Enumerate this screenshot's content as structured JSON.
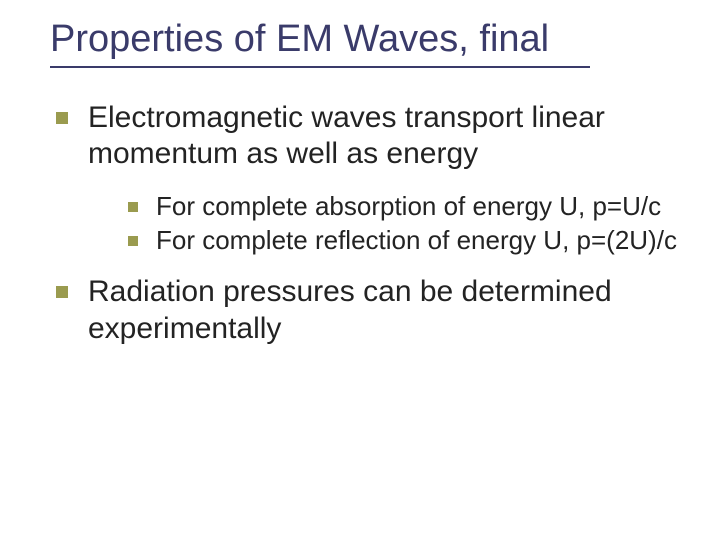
{
  "slide": {
    "title": "Properties of EM Waves, final",
    "title_color": "#3a3b6a",
    "title_fontsize": 38,
    "underline_color": "#3a3b6a",
    "underline_width": 540,
    "bullet_color": "#9a9b4f",
    "body_color": "#232323",
    "lvl1_fontsize": 30,
    "lvl2_fontsize": 26,
    "background_color": "#ffffff",
    "items": [
      {
        "text": "Electromagnetic waves transport linear momentum as well as energy",
        "children": [
          {
            "text": "For complete absorption of energy U, p=U/c"
          },
          {
            "text": "For complete reflection of energy U, p=(2U)/c"
          }
        ]
      },
      {
        "text": "Radiation pressures can be determined experimentally",
        "children": []
      }
    ]
  }
}
